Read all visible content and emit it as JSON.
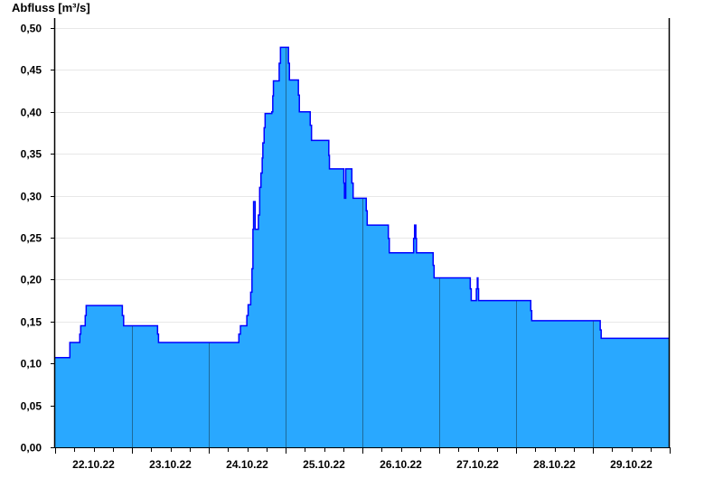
{
  "chart_data": {
    "type": "area",
    "step": true,
    "ylabel": "Abfluss [m³/s]",
    "ylim": [
      0,
      0.5
    ],
    "xlim": [
      "22.10.22 00:00",
      "30.10.22 00:00"
    ],
    "yticks": [
      "0,00",
      "0,05",
      "0,10",
      "0,15",
      "0,20",
      "0,25",
      "0,30",
      "0,35",
      "0,40",
      "0,45",
      "0,50"
    ],
    "xticks": [
      "22.10.22",
      "23.10.22",
      "24.10.22",
      "25.10.22",
      "26.10.22",
      "27.10.22",
      "28.10.22",
      "29.10.22"
    ],
    "grid": true,
    "colors": {
      "fill": "#29a8ff",
      "line": "#0000ff",
      "day_separator": "#1f6a9a",
      "grid": "#e8e8e8"
    },
    "series": [
      {
        "points": [
          [
            "22.10.22 00:00",
            0.107
          ],
          [
            "22.10.22 04:36",
            0.125
          ],
          [
            "22.10.22 07:42",
            0.135
          ],
          [
            "22.10.22 08:00",
            0.145
          ],
          [
            "22.10.22 09:24",
            0.157
          ],
          [
            "22.10.22 09:42",
            0.169
          ],
          [
            "22.10.22 21:00",
            0.157
          ],
          [
            "22.10.22 21:24",
            0.145
          ],
          [
            "23.10.22 08:00",
            0.135
          ],
          [
            "23.10.22 08:18",
            0.125
          ],
          [
            "24.10.22 09:24",
            0.135
          ],
          [
            "24.10.22 09:54",
            0.145
          ],
          [
            "24.10.22 11:54",
            0.157
          ],
          [
            "24.10.22 12:18",
            0.17
          ],
          [
            "24.10.22 13:06",
            0.185
          ],
          [
            "24.10.22 13:30",
            0.213
          ],
          [
            "24.10.22 13:48",
            0.26
          ],
          [
            "24.10.22 14:00",
            0.293
          ],
          [
            "24.10.22 14:30",
            0.26
          ],
          [
            "24.10.22 15:30",
            0.277
          ],
          [
            "24.10.22 15:54",
            0.31
          ],
          [
            "24.10.22 16:18",
            0.327
          ],
          [
            "24.10.22 16:42",
            0.345
          ],
          [
            "24.10.22 16:54",
            0.363
          ],
          [
            "24.10.22 17:18",
            0.381
          ],
          [
            "24.10.22 17:36",
            0.398
          ],
          [
            "24.10.22 19:42",
            0.4
          ],
          [
            "24.10.22 20:00",
            0.419
          ],
          [
            "24.10.22 20:12",
            0.437
          ],
          [
            "24.10.22 22:00",
            0.458
          ],
          [
            "24.10.22 22:24",
            0.477
          ],
          [
            "25.10.22 00:54",
            0.458
          ],
          [
            "25.10.22 01:12",
            0.438
          ],
          [
            "25.10.22 04:00",
            0.42
          ],
          [
            "25.10.22 04:18",
            0.4
          ],
          [
            "25.10.22 07:42",
            0.384
          ],
          [
            "25.10.22 08:06",
            0.366
          ],
          [
            "25.10.22 13:30",
            0.348
          ],
          [
            "25.10.22 13:42",
            0.332
          ],
          [
            "25.10.22 18:12",
            0.315
          ],
          [
            "25.10.22 18:24",
            0.297
          ],
          [
            "25.10.22 18:48",
            0.332
          ],
          [
            "25.10.22 20:42",
            0.315
          ],
          [
            "25.10.22 21:06",
            0.297
          ],
          [
            "26.10.22 01:12",
            0.282
          ],
          [
            "26.10.22 01:30",
            0.265
          ],
          [
            "26.10.22 08:06",
            0.249
          ],
          [
            "26.10.22 08:24",
            0.232
          ],
          [
            "26.10.22 16:00",
            0.249
          ],
          [
            "26.10.22 16:18",
            0.265
          ],
          [
            "26.10.22 16:42",
            0.249
          ],
          [
            "26.10.22 16:54",
            0.232
          ],
          [
            "26.10.22 22:06",
            0.217
          ],
          [
            "26.10.22 22:24",
            0.202
          ],
          [
            "27.10.22 09:42",
            0.189
          ],
          [
            "27.10.22 10:00",
            0.175
          ],
          [
            "27.10.22 11:36",
            0.189
          ],
          [
            "27.10.22 11:54",
            0.202
          ],
          [
            "27.10.22 12:06",
            0.189
          ],
          [
            "27.10.22 12:18",
            0.175
          ],
          [
            "28.10.22 04:36",
            0.163
          ],
          [
            "28.10.22 04:54",
            0.151
          ],
          [
            "29.10.22 02:18",
            0.14
          ],
          [
            "29.10.22 02:36",
            0.13
          ],
          [
            "30.10.22 00:00",
            0.13
          ]
        ]
      }
    ]
  }
}
